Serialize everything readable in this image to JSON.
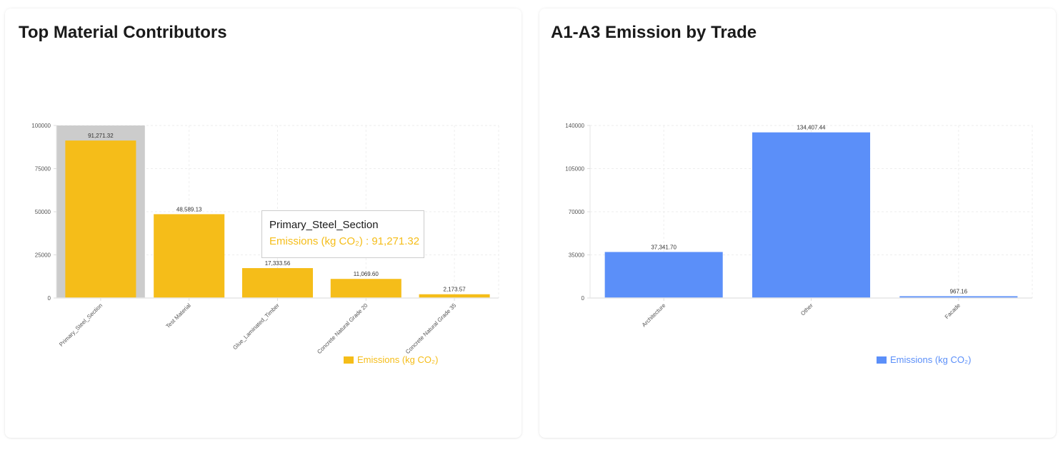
{
  "panels": {
    "left": {
      "title": "Top Material Contributors",
      "tooltip": {
        "label": "Primary_Steel_Section",
        "series": "Emissions (kg CO₂)",
        "value": "91,271.32",
        "text": "Emissions (kg CO₂) : 91,271.32"
      },
      "legend": {
        "label": "Emissions (kg CO₂)",
        "color": "#f5bd19"
      },
      "highlight_color": "#cccccc"
    },
    "right": {
      "title": "A1-A3 Emission by Trade",
      "legend": {
        "label": "Emissions (kg CO₂)",
        "color": "#5b8ff9"
      }
    }
  },
  "chart_data": [
    {
      "type": "bar",
      "title": "Top Material Contributors",
      "xlabel": "",
      "ylabel": "",
      "categories": [
        "Primary_Steel_Section",
        "Test Material",
        "Glue_Laminated_Timber",
        "Concrete Natural Grade 20",
        "Concrete Natural Grade 35"
      ],
      "series": [
        {
          "name": "Emissions (kg CO₂)",
          "color": "#f5bd19",
          "values": [
            91271.32,
            48589.13,
            17333.56,
            11069.6,
            2173.57
          ],
          "labels": [
            "91,271.32",
            "48,589.13",
            "17,333.56",
            "11,069.60",
            "2,173.57"
          ]
        }
      ],
      "yticks": [
        0,
        25000,
        50000,
        75000,
        100000
      ],
      "ylim": [
        0,
        100000
      ],
      "grid": true,
      "legend_position": "bottom-right",
      "highlighted_index": 0
    },
    {
      "type": "bar",
      "title": "A1-A3 Emission by Trade",
      "xlabel": "",
      "ylabel": "",
      "categories": [
        "Architecture",
        "Other",
        "Facade"
      ],
      "series": [
        {
          "name": "Emissions (kg CO₂)",
          "color": "#5b8ff9",
          "values": [
            37341.7,
            134407.44,
            967.16
          ],
          "labels": [
            "37,341.70",
            "134,407.44",
            "967.16"
          ]
        }
      ],
      "yticks": [
        0,
        35000,
        70000,
        105000,
        140000
      ],
      "ylim": [
        0,
        140000
      ],
      "grid": true,
      "legend_position": "bottom-center"
    }
  ]
}
